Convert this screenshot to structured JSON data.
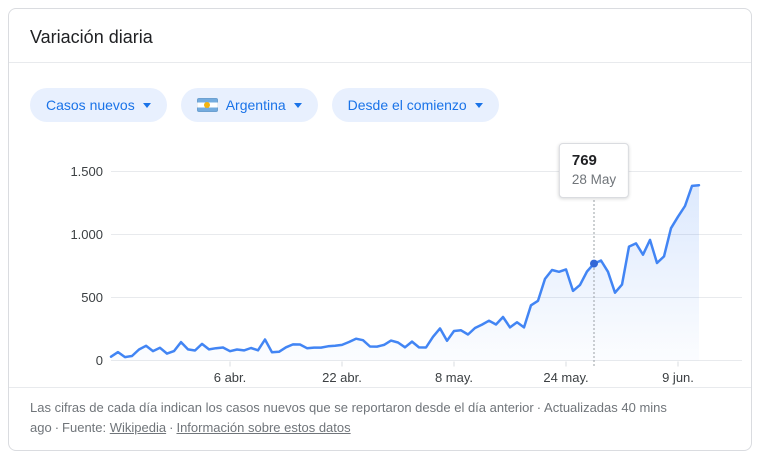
{
  "card": {
    "title": "Variación diaria"
  },
  "filters": {
    "metric": "Casos nuevos",
    "region": "Argentina",
    "range": "Desde el comienzo"
  },
  "tooltip": {
    "value": "769",
    "date": "28 May"
  },
  "footer": {
    "description": "Las cifras de cada día indican los casos nuevos que se reportaron desde el día anterior",
    "separator": "·",
    "updated": "Actualizadas 40 mins ago",
    "source_label": "Fuente:",
    "source_link": "Wikipedia",
    "info_link": "Información sobre estos datos"
  },
  "chart_data": {
    "type": "area",
    "title": "Variación diaria",
    "series_name": "Casos nuevos",
    "region": "Argentina",
    "x": [
      "2020-03-20",
      "2020-03-21",
      "2020-03-22",
      "2020-03-23",
      "2020-03-24",
      "2020-03-25",
      "2020-03-26",
      "2020-03-27",
      "2020-03-28",
      "2020-03-29",
      "2020-03-30",
      "2020-03-31",
      "2020-04-01",
      "2020-04-02",
      "2020-04-03",
      "2020-04-04",
      "2020-04-05",
      "2020-04-06",
      "2020-04-07",
      "2020-04-08",
      "2020-04-09",
      "2020-04-10",
      "2020-04-11",
      "2020-04-12",
      "2020-04-13",
      "2020-04-14",
      "2020-04-15",
      "2020-04-16",
      "2020-04-17",
      "2020-04-18",
      "2020-04-19",
      "2020-04-20",
      "2020-04-21",
      "2020-04-22",
      "2020-04-23",
      "2020-04-24",
      "2020-04-25",
      "2020-04-26",
      "2020-04-27",
      "2020-04-28",
      "2020-04-29",
      "2020-04-30",
      "2020-05-01",
      "2020-05-02",
      "2020-05-03",
      "2020-05-04",
      "2020-05-05",
      "2020-05-06",
      "2020-05-07",
      "2020-05-08",
      "2020-05-09",
      "2020-05-10",
      "2020-05-11",
      "2020-05-12",
      "2020-05-13",
      "2020-05-14",
      "2020-05-15",
      "2020-05-16",
      "2020-05-17",
      "2020-05-18",
      "2020-05-19",
      "2020-05-20",
      "2020-05-21",
      "2020-05-22",
      "2020-05-23",
      "2020-05-24",
      "2020-05-25",
      "2020-05-26",
      "2020-05-27",
      "2020-05-28",
      "2020-05-29",
      "2020-05-30",
      "2020-05-31",
      "2020-06-01",
      "2020-06-02",
      "2020-06-03",
      "2020-06-04",
      "2020-06-05",
      "2020-06-06",
      "2020-06-07",
      "2020-06-08",
      "2020-06-09",
      "2020-06-10",
      "2020-06-11",
      "2020-06-12"
    ],
    "values": [
      30,
      67,
      27,
      36,
      87,
      117,
      75,
      101,
      55,
      75,
      146,
      88,
      79,
      132,
      88,
      98,
      103,
      74,
      87,
      80,
      99,
      81,
      167,
      65,
      69,
      105,
      128,
      127,
      98,
      102,
      102,
      113,
      117,
      124,
      147,
      173,
      161,
      111,
      110,
      124,
      158,
      143,
      105,
      150,
      104,
      103,
      188,
      255,
      156,
      234,
      240,
      206,
      258,
      285,
      316,
      286,
      345,
      263,
      303,
      263,
      438,
      474,
      648,
      718,
      704,
      723,
      552,
      600,
      706,
      769,
      794,
      704,
      538,
      602,
      904,
      929,
      840,
      957,
      774,
      826,
      1050,
      1141,
      1226,
      1386,
      1391
    ],
    "ylim": [
      0,
      1500
    ],
    "y_ticks": [
      {
        "value": 0,
        "label": "0"
      },
      {
        "value": 500,
        "label": "500"
      },
      {
        "value": 1000,
        "label": "1.000"
      },
      {
        "value": 1500,
        "label": "1.500"
      }
    ],
    "x_ticks": [
      {
        "date": "2020-04-06",
        "label": "6 abr."
      },
      {
        "date": "2020-04-22",
        "label": "22 abr."
      },
      {
        "date": "2020-05-08",
        "label": "8 may."
      },
      {
        "date": "2020-05-24",
        "label": "24 may."
      },
      {
        "date": "2020-06-09",
        "label": "9 jun."
      }
    ],
    "highlight": {
      "date": "2020-05-28",
      "value": 769,
      "label": "28 May"
    },
    "grid": true,
    "legend": "none",
    "line_color": "#4285f4",
    "highlight_dot_color": "#3367d6",
    "grid_color": "#e8eaed",
    "area_top_color": "rgba(66,133,244,0.18)",
    "area_bottom_color": "rgba(66,133,244,0.02)"
  }
}
